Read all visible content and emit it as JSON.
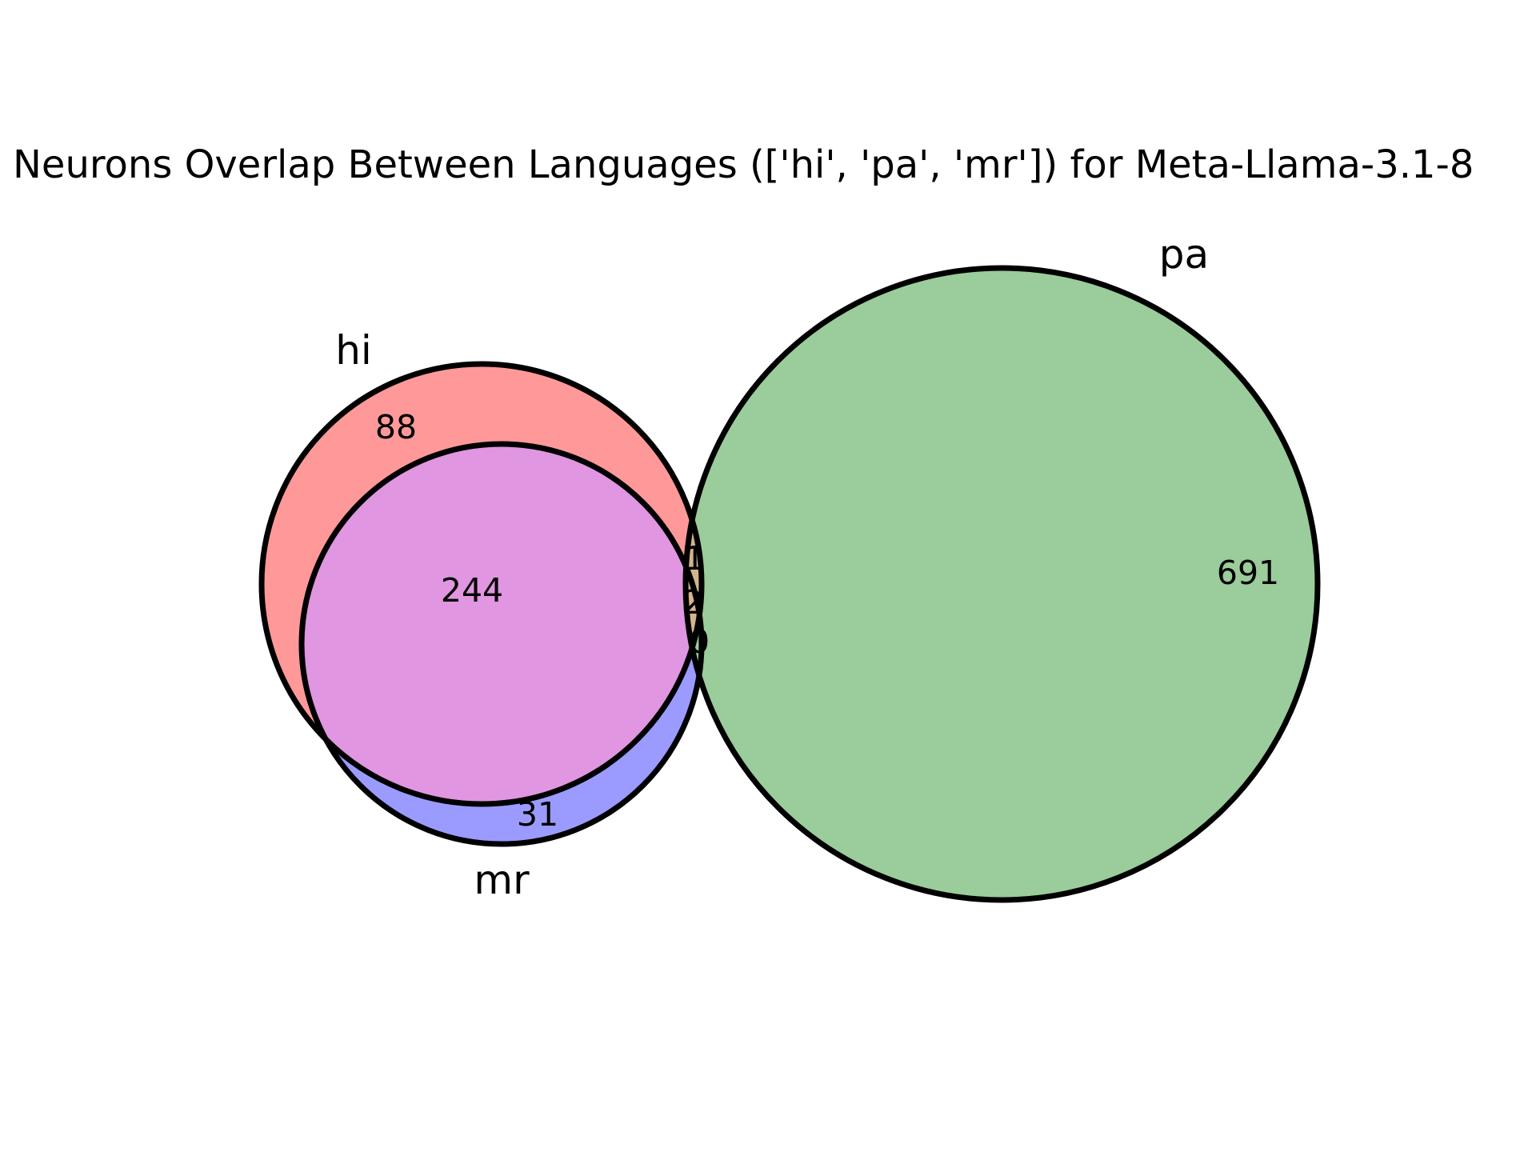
{
  "title": "Neurons Overlap Between Languages (['hi', 'pa', 'mr']) for Meta-Llama-3.1-8",
  "sets": [
    {
      "key": "hi",
      "label": "hi",
      "color": "#ff9999"
    },
    {
      "key": "pa",
      "label": "pa",
      "color": "#9bcc9b"
    },
    {
      "key": "mr",
      "label": "mr",
      "color": "#9b9bff"
    }
  ],
  "overlap_colors": {
    "hi_mr": "#e096e0",
    "hi_pa": "#d4b48c"
  },
  "regions": [
    {
      "key": "hi_only",
      "label": "88"
    },
    {
      "key": "hi_mr",
      "label": "244"
    },
    {
      "key": "mr_only",
      "label": "31"
    },
    {
      "key": "pa_only",
      "label": "691"
    },
    {
      "key": "hi_pa",
      "label": "1"
    },
    {
      "key": "hi_pa_mr",
      "label": "2"
    },
    {
      "key": "pa_mr",
      "label": "0"
    }
  ]
}
